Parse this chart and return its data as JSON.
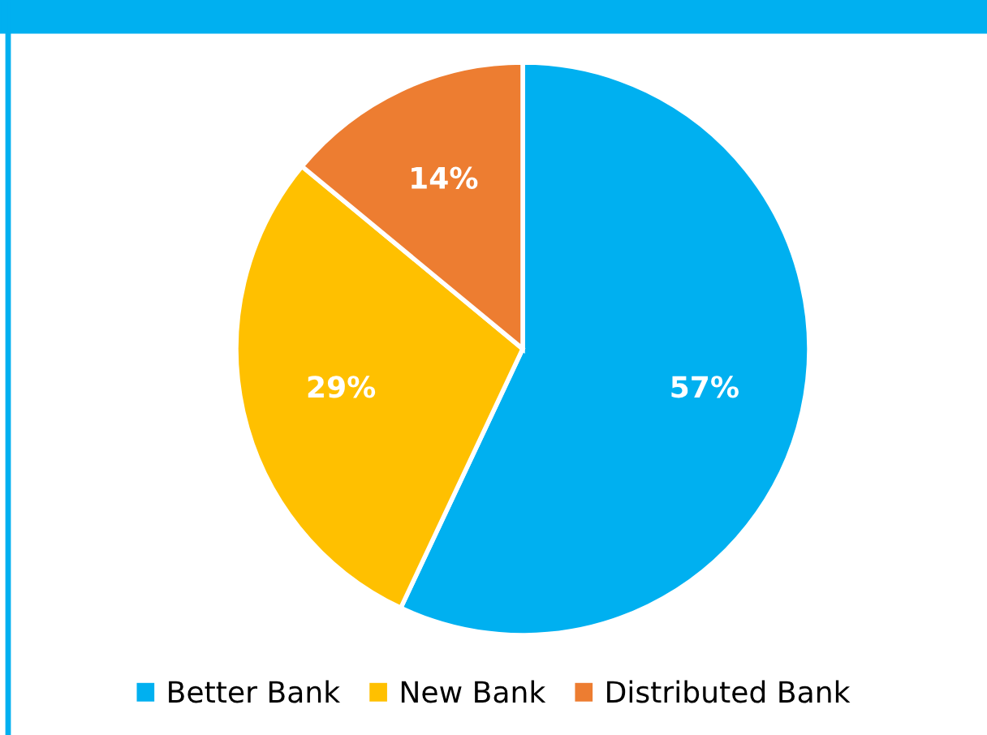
{
  "chart_data": {
    "type": "pie",
    "categories": [
      "Better Bank",
      "New Bank",
      "Distributed Bank"
    ],
    "values": [
      57,
      29,
      14
    ],
    "colors": [
      "#00b0f0",
      "#ffc000",
      "#ed7d31"
    ],
    "value_labels": [
      "57%",
      "29%",
      "14%"
    ],
    "legend": "bottom"
  }
}
